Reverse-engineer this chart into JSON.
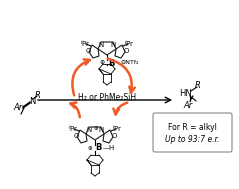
{
  "figsize": [
    2.39,
    1.89
  ],
  "dpi": 100,
  "bg_color": "#ffffff",
  "arrow_color": "#f05a28",
  "box_color": "#d0d0d0",
  "text_color": "#000000",
  "center_text": "H₂ or PhMe₂SiH",
  "box_text_line1": "For R = alkyl",
  "box_text_line2": "Up to 93:7 e.r.",
  "ketimine_ar": "Ar",
  "ketimine_n": "N",
  "ketimine_r": "R",
  "product_hn": "HN",
  "product_r": "R",
  "product_ar": "Ar",
  "top_borenium_b": "⊕B",
  "top_borenium_ntf2": "⊕NTf₂",
  "top_borenium_ipr_left": "iPr",
  "top_borenium_ipr_right": "iPr",
  "bottom_borenium_b": "⊕B",
  "bottom_borenium_ipr_left": "iPr",
  "bottom_borenium_ipr_right": "iPr",
  "n_label": "N",
  "o_label": "O"
}
